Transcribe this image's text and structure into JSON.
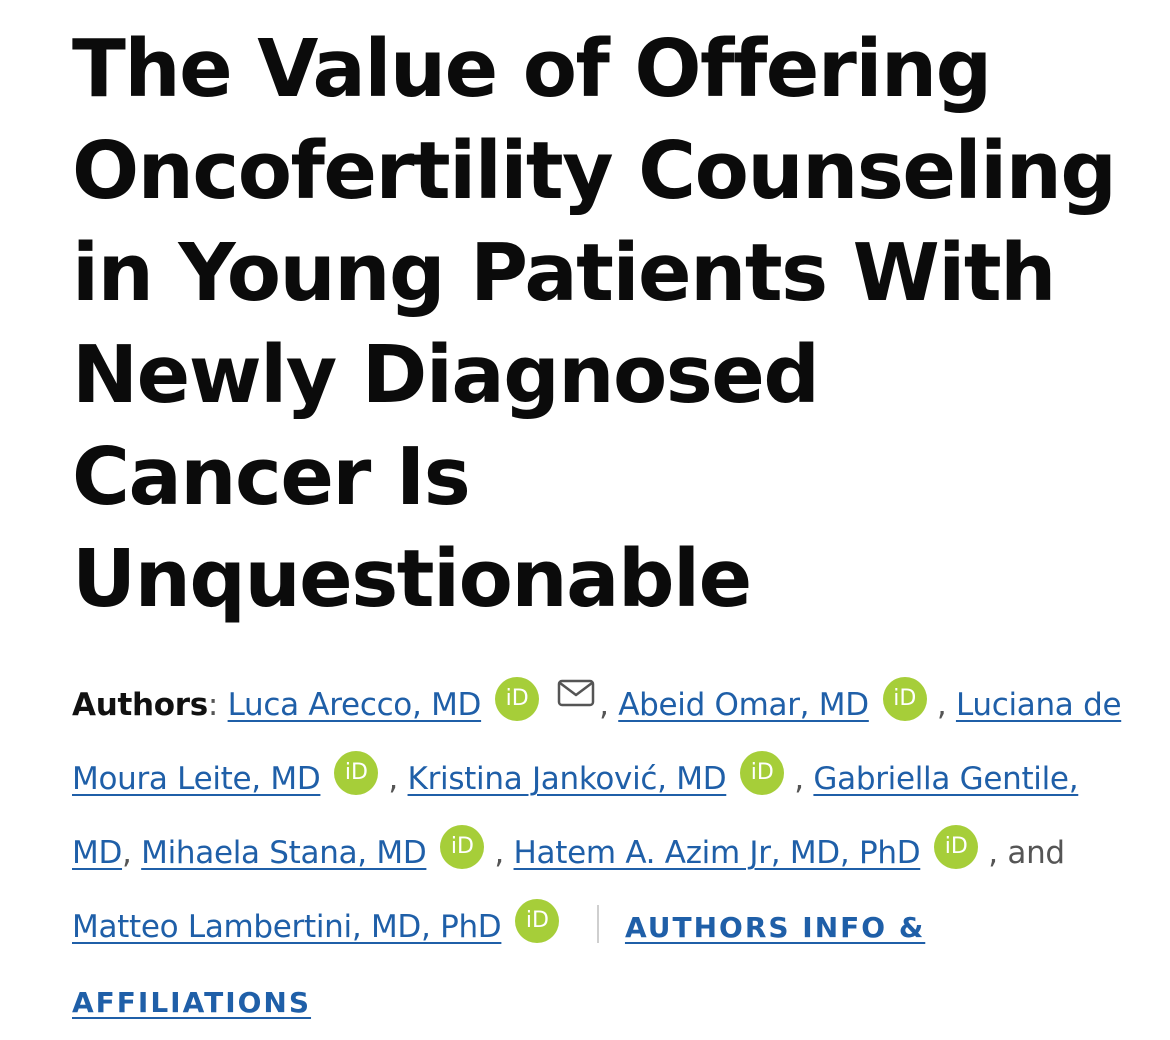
{
  "article": {
    "title": "The Value of Offering Oncofertility Counseling in Young Patients With Newly Diagnosed Cancer Is Unquestionable"
  },
  "authors": {
    "label": "Authors",
    "colon": ":",
    "list": [
      {
        "name": "Luca Arecco, MD",
        "orcid": true,
        "email": true,
        "sep": ","
      },
      {
        "name": "Abeid Omar, MD",
        "orcid": true,
        "email": false,
        "sep": ","
      },
      {
        "name": "Luciana de Moura Leite, MD",
        "orcid": true,
        "email": false,
        "sep": ","
      },
      {
        "name": "Kristina Janković, MD",
        "orcid": true,
        "email": false,
        "sep": ","
      },
      {
        "name": "Gabriella Gentile, MD",
        "orcid": false,
        "email": false,
        "sep": ","
      },
      {
        "name": "Mihaela Stana, MD",
        "orcid": true,
        "email": false,
        "sep": ","
      },
      {
        "name": "Hatem A. Azim Jr, MD, PhD",
        "orcid": true,
        "email": false,
        "sep": ", and"
      },
      {
        "name": "Matteo Lambertini, MD, PhD",
        "orcid": true,
        "email": false,
        "sep": ""
      }
    ],
    "orcid_text": "iD",
    "affiliations_link": "AUTHORS INFO & AFFILIATIONS"
  },
  "icons": {
    "orcid": "orcid-icon",
    "email": "mail-icon"
  },
  "colors": {
    "link": "#1f5fa8",
    "orcid": "#a6ce39",
    "title": "#0b0b0b"
  }
}
